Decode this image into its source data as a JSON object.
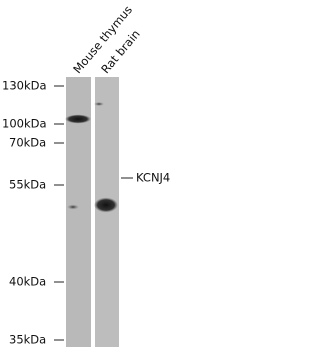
{
  "lanes": [
    "Mouse thymus",
    "Rat brain"
  ],
  "markers": [
    "130kDa",
    "100kDa",
    "70kDa",
    "55kDa",
    "40kDa",
    "35kDa"
  ],
  "band_label": "KCNJ4"
}
